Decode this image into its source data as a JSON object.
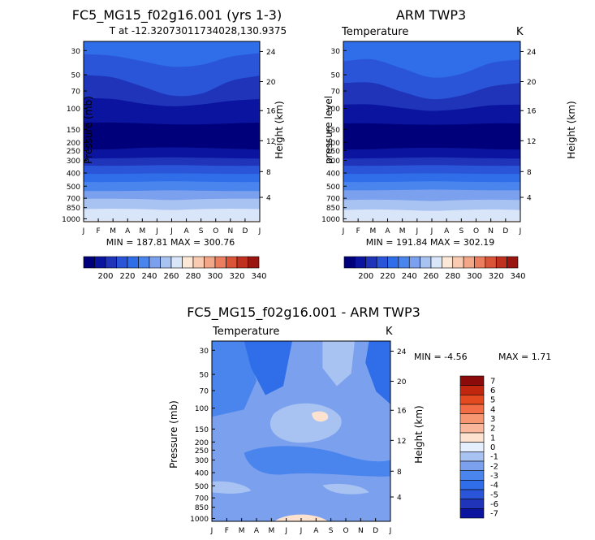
{
  "chart_data": [
    {
      "type": "heatmap",
      "title": "FC5_MG15_f02g16.001 (yrs 1-3)",
      "subtitle": "T at -12.32073011734028,130.9375",
      "ylabel": "Pressure (mb)",
      "y2label": "Height (km)",
      "months": [
        "J",
        "F",
        "M",
        "A",
        "M",
        "J",
        "J",
        "A",
        "S",
        "O",
        "N",
        "D",
        "J"
      ],
      "pressure_ticks": [
        "30",
        "50",
        "70",
        "100",
        "150",
        "200",
        "250",
        "300",
        "400",
        "500",
        "700",
        "850",
        "1000"
      ],
      "height_ticks": [
        "24",
        "20",
        "16",
        "12",
        "8",
        "4"
      ],
      "stats": "MIN = 187.81  MAX = 300.76",
      "colorbar_labels": [
        "200",
        "220",
        "240",
        "260",
        "280",
        "300",
        "320",
        "340"
      ]
    },
    {
      "type": "heatmap",
      "title": "ARM TWP3",
      "left_string": "Temperature",
      "right_string": "K",
      "ylabel": "pressure level",
      "y2label": "Height (km)",
      "months": [
        "J",
        "F",
        "M",
        "A",
        "M",
        "J",
        "J",
        "A",
        "S",
        "O",
        "N",
        "D",
        "J"
      ],
      "pressure_ticks": [
        "30",
        "50",
        "70",
        "100",
        "150",
        "200",
        "250",
        "300",
        "400",
        "500",
        "700",
        "850",
        "1000"
      ],
      "height_ticks": [
        "24",
        "20",
        "16",
        "12",
        "8",
        "4"
      ],
      "stats": "MIN = 191.84  MAX = 302.19",
      "colorbar_labels": [
        "200",
        "220",
        "240",
        "260",
        "280",
        "300",
        "320",
        "340"
      ]
    },
    {
      "type": "heatmap",
      "title": "FC5_MG15_f02g16.001 - ARM TWP3",
      "left_string": "Temperature",
      "right_string": "K",
      "ylabel": "Pressure (mb)",
      "y2label": "Height (km)",
      "months": [
        "J",
        "F",
        "M",
        "A",
        "M",
        "J",
        "J",
        "A",
        "S",
        "O",
        "N",
        "D",
        "J"
      ],
      "pressure_ticks": [
        "30",
        "50",
        "70",
        "100",
        "150",
        "200",
        "250",
        "300",
        "400",
        "500",
        "700",
        "850",
        "1000"
      ],
      "height_ticks": [
        "24",
        "20",
        "16",
        "12",
        "8",
        "4"
      ],
      "stats_min": "MIN =   -4.56",
      "stats_max": "MAX =    1.71",
      "colorbar_labels": [
        "7",
        "6",
        "5",
        "4",
        "3",
        "2",
        "1",
        "0",
        "-1",
        "-2",
        "-3",
        "-4",
        "-5",
        "-6",
        "-7"
      ]
    }
  ],
  "palette_temp": [
    "#00007a",
    "#0a149e",
    "#1f34b8",
    "#2a55d8",
    "#2f6ee8",
    "#4a85ee",
    "#7ba1ee",
    "#a8c2f2",
    "#d9e6fa",
    "#fde8d8",
    "#f9cbb0",
    "#f2a788",
    "#ea7e5e",
    "#da5437",
    "#c0301e",
    "#9a1410"
  ],
  "palette_diff": [
    "#8b0a0a",
    "#c1260e",
    "#e34a1f",
    "#f26d45",
    "#f79771",
    "#fbb79b",
    "#fde3cf",
    "#e4eefc",
    "#a8c2f2",
    "#7ba1ee",
    "#4a85ee",
    "#2f6ee8",
    "#2a55d8",
    "#1f34b8",
    "#0a149e"
  ]
}
